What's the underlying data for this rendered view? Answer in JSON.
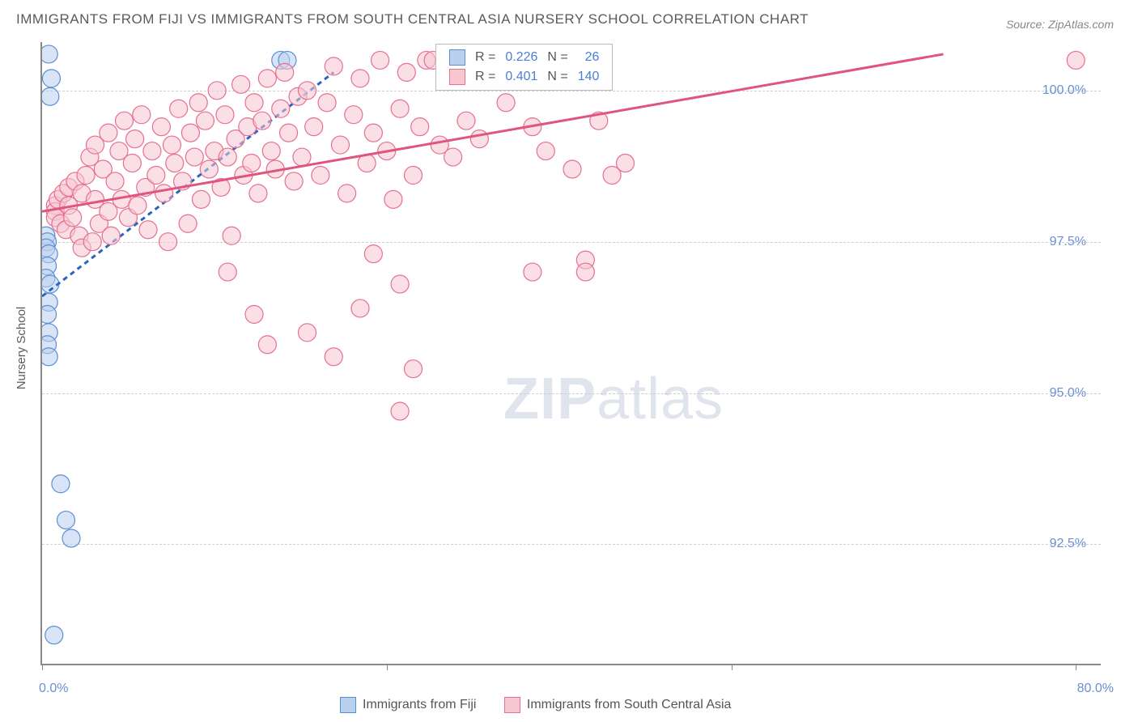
{
  "title": "IMMIGRANTS FROM FIJI VS IMMIGRANTS FROM SOUTH CENTRAL ASIA NURSERY SCHOOL CORRELATION CHART",
  "source": "Source: ZipAtlas.com",
  "y_axis_label": "Nursery School",
  "watermark_a": "ZIP",
  "watermark_b": "atlas",
  "chart": {
    "type": "scatter",
    "xlim": [
      0,
      80
    ],
    "ylim": [
      90.5,
      100.8
    ],
    "xtick_label_min": "0.0%",
    "xtick_label_max": "80.0%",
    "xtick_positions": [
      0,
      26,
      52,
      78
    ],
    "ytick_labels": [
      "92.5%",
      "95.0%",
      "97.5%",
      "100.0%"
    ],
    "ytick_values": [
      92.5,
      95.0,
      97.5,
      100.0
    ],
    "grid_color": "#d0d0d0",
    "background_color": "#ffffff",
    "marker_radius": 11,
    "marker_opacity": 0.55,
    "series": [
      {
        "name": "Immigrants from Fiji",
        "color_fill": "#b9d0ee",
        "color_stroke": "#5a8fd6",
        "R": "0.226",
        "N": "26",
        "trend": {
          "x1": 0,
          "y1": 96.6,
          "x2": 22,
          "y2": 100.3,
          "dash": "6 5",
          "color": "#2a64c2",
          "width": 3
        },
        "points": [
          [
            0.5,
            100.6
          ],
          [
            0.7,
            100.2
          ],
          [
            0.6,
            99.9
          ],
          [
            0.3,
            97.6
          ],
          [
            0.4,
            97.5
          ],
          [
            0.3,
            97.4
          ],
          [
            0.5,
            97.3
          ],
          [
            0.4,
            97.1
          ],
          [
            0.3,
            96.9
          ],
          [
            0.6,
            96.8
          ],
          [
            0.5,
            96.5
          ],
          [
            0.4,
            96.3
          ],
          [
            0.5,
            96.0
          ],
          [
            0.4,
            95.8
          ],
          [
            0.5,
            95.6
          ],
          [
            1.4,
            93.5
          ],
          [
            1.8,
            92.9
          ],
          [
            2.2,
            92.6
          ],
          [
            0.9,
            91.0
          ],
          [
            18.0,
            100.5
          ],
          [
            18.5,
            100.5
          ]
        ]
      },
      {
        "name": "Immigrants from South Central Asia",
        "color_fill": "#f6c6d1",
        "color_stroke": "#e76f91",
        "R": "0.401",
        "N": "140",
        "trend": {
          "x1": 0,
          "y1": 98.0,
          "x2": 68,
          "y2": 100.6,
          "dash": "none",
          "color": "#e0557e",
          "width": 3
        },
        "points": [
          [
            1,
            98.1
          ],
          [
            1,
            98.0
          ],
          [
            1,
            97.9
          ],
          [
            1.2,
            98.2
          ],
          [
            1.4,
            97.8
          ],
          [
            1.6,
            98.3
          ],
          [
            1.8,
            97.7
          ],
          [
            2,
            98.1
          ],
          [
            2,
            98.4
          ],
          [
            2.3,
            97.9
          ],
          [
            2.5,
            98.5
          ],
          [
            2.8,
            97.6
          ],
          [
            3,
            98.3
          ],
          [
            3,
            97.4
          ],
          [
            3.3,
            98.6
          ],
          [
            3.6,
            98.9
          ],
          [
            3.8,
            97.5
          ],
          [
            4,
            98.2
          ],
          [
            4,
            99.1
          ],
          [
            4.3,
            97.8
          ],
          [
            4.6,
            98.7
          ],
          [
            5,
            98.0
          ],
          [
            5,
            99.3
          ],
          [
            5.2,
            97.6
          ],
          [
            5.5,
            98.5
          ],
          [
            5.8,
            99.0
          ],
          [
            6,
            98.2
          ],
          [
            6.2,
            99.5
          ],
          [
            6.5,
            97.9
          ],
          [
            6.8,
            98.8
          ],
          [
            7,
            99.2
          ],
          [
            7.2,
            98.1
          ],
          [
            7.5,
            99.6
          ],
          [
            7.8,
            98.4
          ],
          [
            8,
            97.7
          ],
          [
            8.3,
            99.0
          ],
          [
            8.6,
            98.6
          ],
          [
            9,
            99.4
          ],
          [
            9.2,
            98.3
          ],
          [
            9.5,
            97.5
          ],
          [
            9.8,
            99.1
          ],
          [
            10,
            98.8
          ],
          [
            10.3,
            99.7
          ],
          [
            10.6,
            98.5
          ],
          [
            11,
            97.8
          ],
          [
            11.2,
            99.3
          ],
          [
            11.5,
            98.9
          ],
          [
            11.8,
            99.8
          ],
          [
            12,
            98.2
          ],
          [
            12.3,
            99.5
          ],
          [
            12.6,
            98.7
          ],
          [
            13,
            99.0
          ],
          [
            13.2,
            100.0
          ],
          [
            13.5,
            98.4
          ],
          [
            13.8,
            99.6
          ],
          [
            14,
            98.9
          ],
          [
            14.3,
            97.6
          ],
          [
            14.6,
            99.2
          ],
          [
            15,
            100.1
          ],
          [
            15.2,
            98.6
          ],
          [
            15.5,
            99.4
          ],
          [
            15.8,
            98.8
          ],
          [
            16,
            99.8
          ],
          [
            16.3,
            98.3
          ],
          [
            16.6,
            99.5
          ],
          [
            17,
            100.2
          ],
          [
            17.3,
            99.0
          ],
          [
            17.6,
            98.7
          ],
          [
            18,
            99.7
          ],
          [
            18.3,
            100.3
          ],
          [
            18.6,
            99.3
          ],
          [
            19,
            98.5
          ],
          [
            19.3,
            99.9
          ],
          [
            19.6,
            98.9
          ],
          [
            20,
            100.0
          ],
          [
            20.5,
            99.4
          ],
          [
            21,
            98.6
          ],
          [
            21.5,
            99.8
          ],
          [
            22,
            100.4
          ],
          [
            22.5,
            99.1
          ],
          [
            23,
            98.3
          ],
          [
            23.5,
            99.6
          ],
          [
            24,
            100.2
          ],
          [
            24.5,
            98.8
          ],
          [
            25,
            99.3
          ],
          [
            25.5,
            100.5
          ],
          [
            26,
            99.0
          ],
          [
            26.5,
            98.2
          ],
          [
            27,
            99.7
          ],
          [
            27.5,
            100.3
          ],
          [
            28,
            98.6
          ],
          [
            28.5,
            99.4
          ],
          [
            29,
            100.5
          ],
          [
            29.5,
            100.5
          ],
          [
            30,
            99.1
          ],
          [
            30.5,
            100.5
          ],
          [
            31,
            98.9
          ],
          [
            31.5,
            100.5
          ],
          [
            32,
            99.5
          ],
          [
            32.5,
            100.5
          ],
          [
            33,
            99.2
          ],
          [
            34,
            100.5
          ],
          [
            35,
            99.8
          ],
          [
            36,
            100.5
          ],
          [
            37,
            99.4
          ],
          [
            38,
            99.0
          ],
          [
            39,
            100.5
          ],
          [
            40,
            98.7
          ],
          [
            42,
            99.5
          ],
          [
            44,
            98.8
          ],
          [
            14,
            97.0
          ],
          [
            16,
            96.3
          ],
          [
            17,
            95.8
          ],
          [
            20,
            96.0
          ],
          [
            22,
            95.6
          ],
          [
            24,
            96.4
          ],
          [
            25,
            97.3
          ],
          [
            27,
            96.8
          ],
          [
            28,
            95.4
          ],
          [
            37,
            97.0
          ],
          [
            41,
            97.2
          ],
          [
            43,
            98.6
          ],
          [
            27,
            94.7
          ],
          [
            41,
            97.0
          ],
          [
            78,
            100.5
          ]
        ]
      }
    ]
  },
  "legend_labels": {
    "R": "R =",
    "N": "N ="
  },
  "bottom_legend": [
    {
      "label": "Immigrants from Fiji",
      "fill": "#b9d0ee",
      "stroke": "#5a8fd6"
    },
    {
      "label": "Immigrants from South Central Asia",
      "fill": "#f6c6d1",
      "stroke": "#e76f91"
    }
  ]
}
